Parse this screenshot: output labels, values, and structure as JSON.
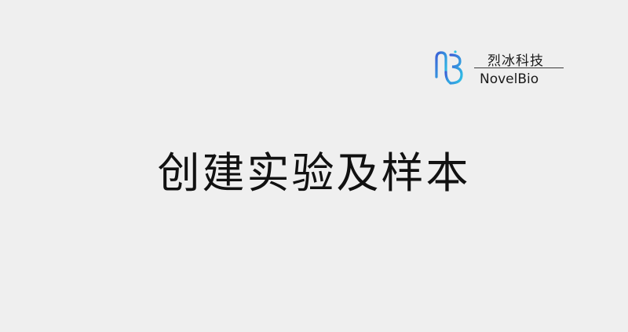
{
  "logo": {
    "name_cn": "烈冰科技",
    "name_en": "NovelBio",
    "mark_icon": "novelbio-logo-icon",
    "colors": {
      "gradient_start": "#3b5fd6",
      "gradient_end": "#2ec4e6"
    }
  },
  "slide": {
    "title": "创建实验及样本"
  },
  "colors": {
    "background": "#efefef",
    "text": "#111111"
  }
}
